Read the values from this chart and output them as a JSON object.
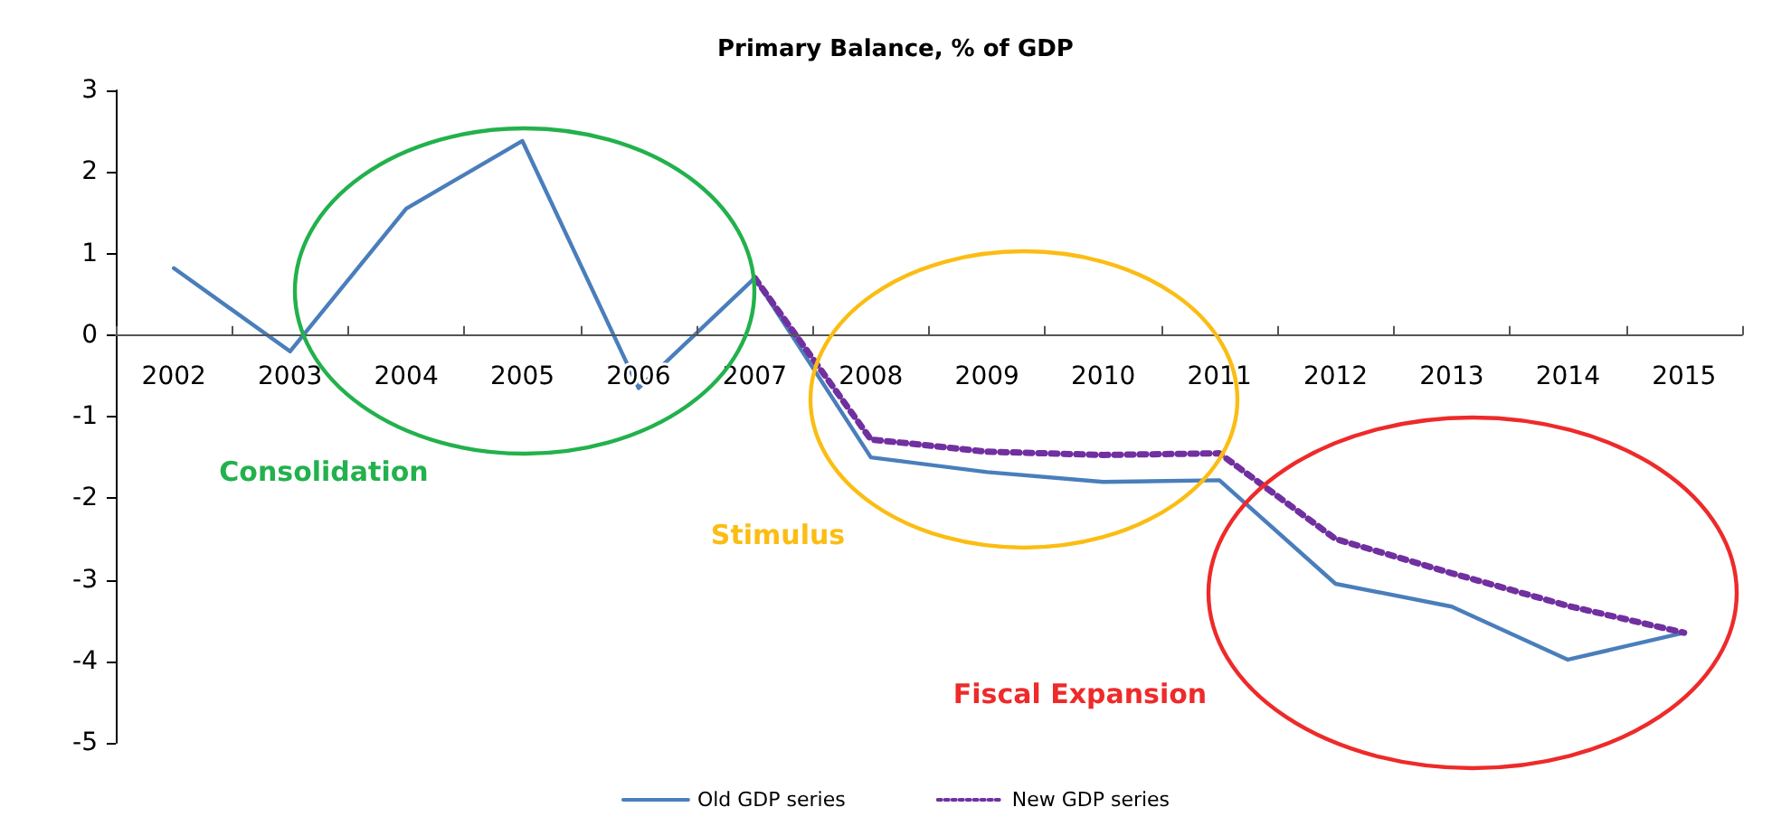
{
  "chart_data": {
    "type": "line",
    "title": "Primary Balance, % of GDP",
    "categories": [
      "2002",
      "2003",
      "2004",
      "2005",
      "2006",
      "2007",
      "2008",
      "2009",
      "2010",
      "2011",
      "2012",
      "2013",
      "2014",
      "2015"
    ],
    "series": [
      {
        "name": "Old GDP series",
        "color": "#4a7ebb",
        "line_style": "solid",
        "values": [
          0.82,
          -0.2,
          1.55,
          2.38,
          -0.65,
          0.7,
          -1.5,
          -1.68,
          -1.8,
          -1.78,
          -3.05,
          -3.33,
          -3.98,
          -3.65
        ]
      },
      {
        "name": "New GDP series",
        "color": "#7030a0",
        "line_style": "dotted",
        "values": [
          null,
          null,
          null,
          null,
          null,
          0.7,
          -1.28,
          -1.43,
          -1.47,
          -1.45,
          -2.5,
          -2.92,
          -3.32,
          -3.65
        ]
      }
    ],
    "ylim": [
      -5,
      3
    ],
    "yticks": [
      -5,
      -4,
      -3,
      -2,
      -1,
      0,
      1,
      2,
      3
    ],
    "grid": false,
    "legend": "bottom",
    "marker": "none",
    "annotations": [
      "Consolidation",
      "Stimulus",
      "Fiscal Expansion"
    ]
  }
}
